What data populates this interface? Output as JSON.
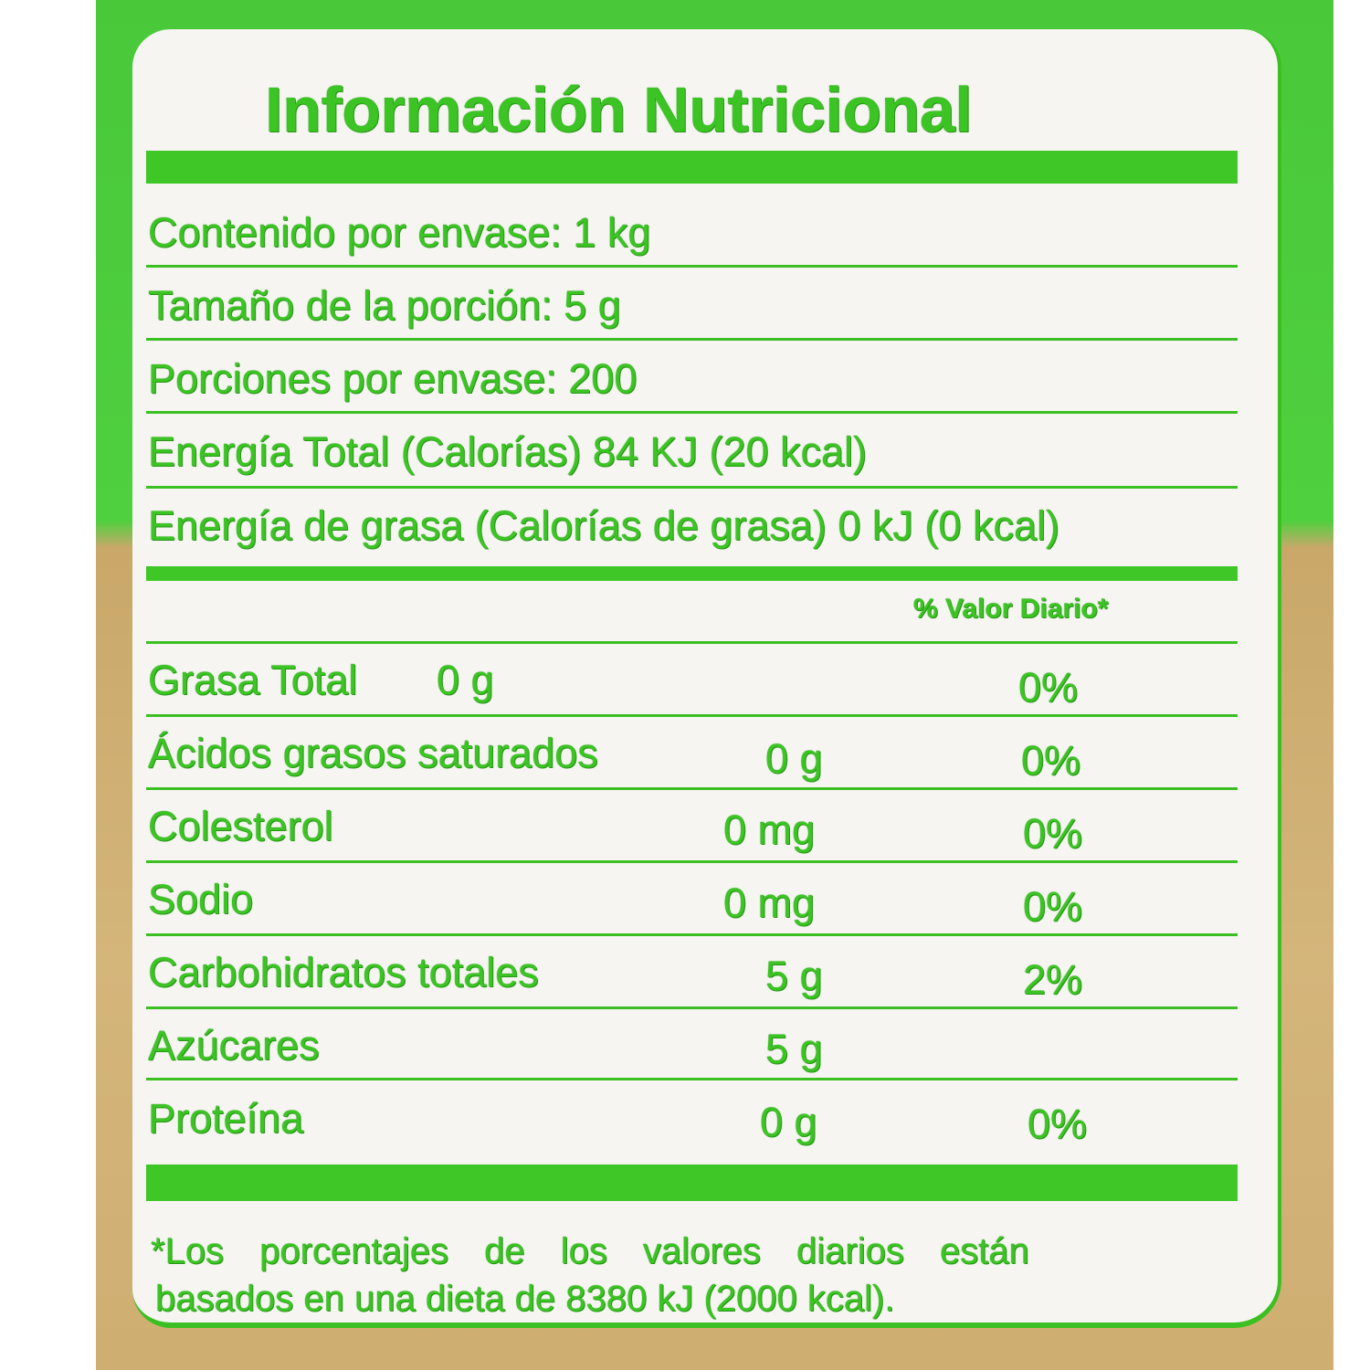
{
  "title": "Información Nutricional",
  "serving_info": [
    "Contenido por envase: 1 kg",
    "Tamaño de la porción: 5 g",
    "Porciones por envase: 200",
    "Energía Total (Calorías) 84 KJ (20 kcal)",
    "Energía de grasa (Calorías de grasa) 0 kJ (0 kcal)"
  ],
  "dv_header": "% Valor Diario*",
  "nutrients": [
    {
      "name": "Grasa Total",
      "amount": "0 g",
      "dv": "0%"
    },
    {
      "name": "Ácidos grasos saturados",
      "amount": "0 g",
      "dv": "0%"
    },
    {
      "name": "Colesterol",
      "amount": "0 mg",
      "dv": "0%"
    },
    {
      "name": "Sodio",
      "amount": "0 mg",
      "dv": "0%"
    },
    {
      "name": "Carbohidratos totales",
      "amount": "5 g",
      "dv": "2%"
    },
    {
      "name": "Azúcares",
      "amount": "5 g",
      "dv": ""
    },
    {
      "name": "Proteína",
      "amount": "0 g",
      "dv": "0%"
    }
  ],
  "footnote": [
    "*Los porcentajes de los valores diarios están",
    "basados en una dieta de 8380 kJ (2000 kcal)."
  ],
  "colors": {
    "text_green": "#3cc424",
    "bag_green": "#4fd03f",
    "panel": "#f6f5f1"
  }
}
